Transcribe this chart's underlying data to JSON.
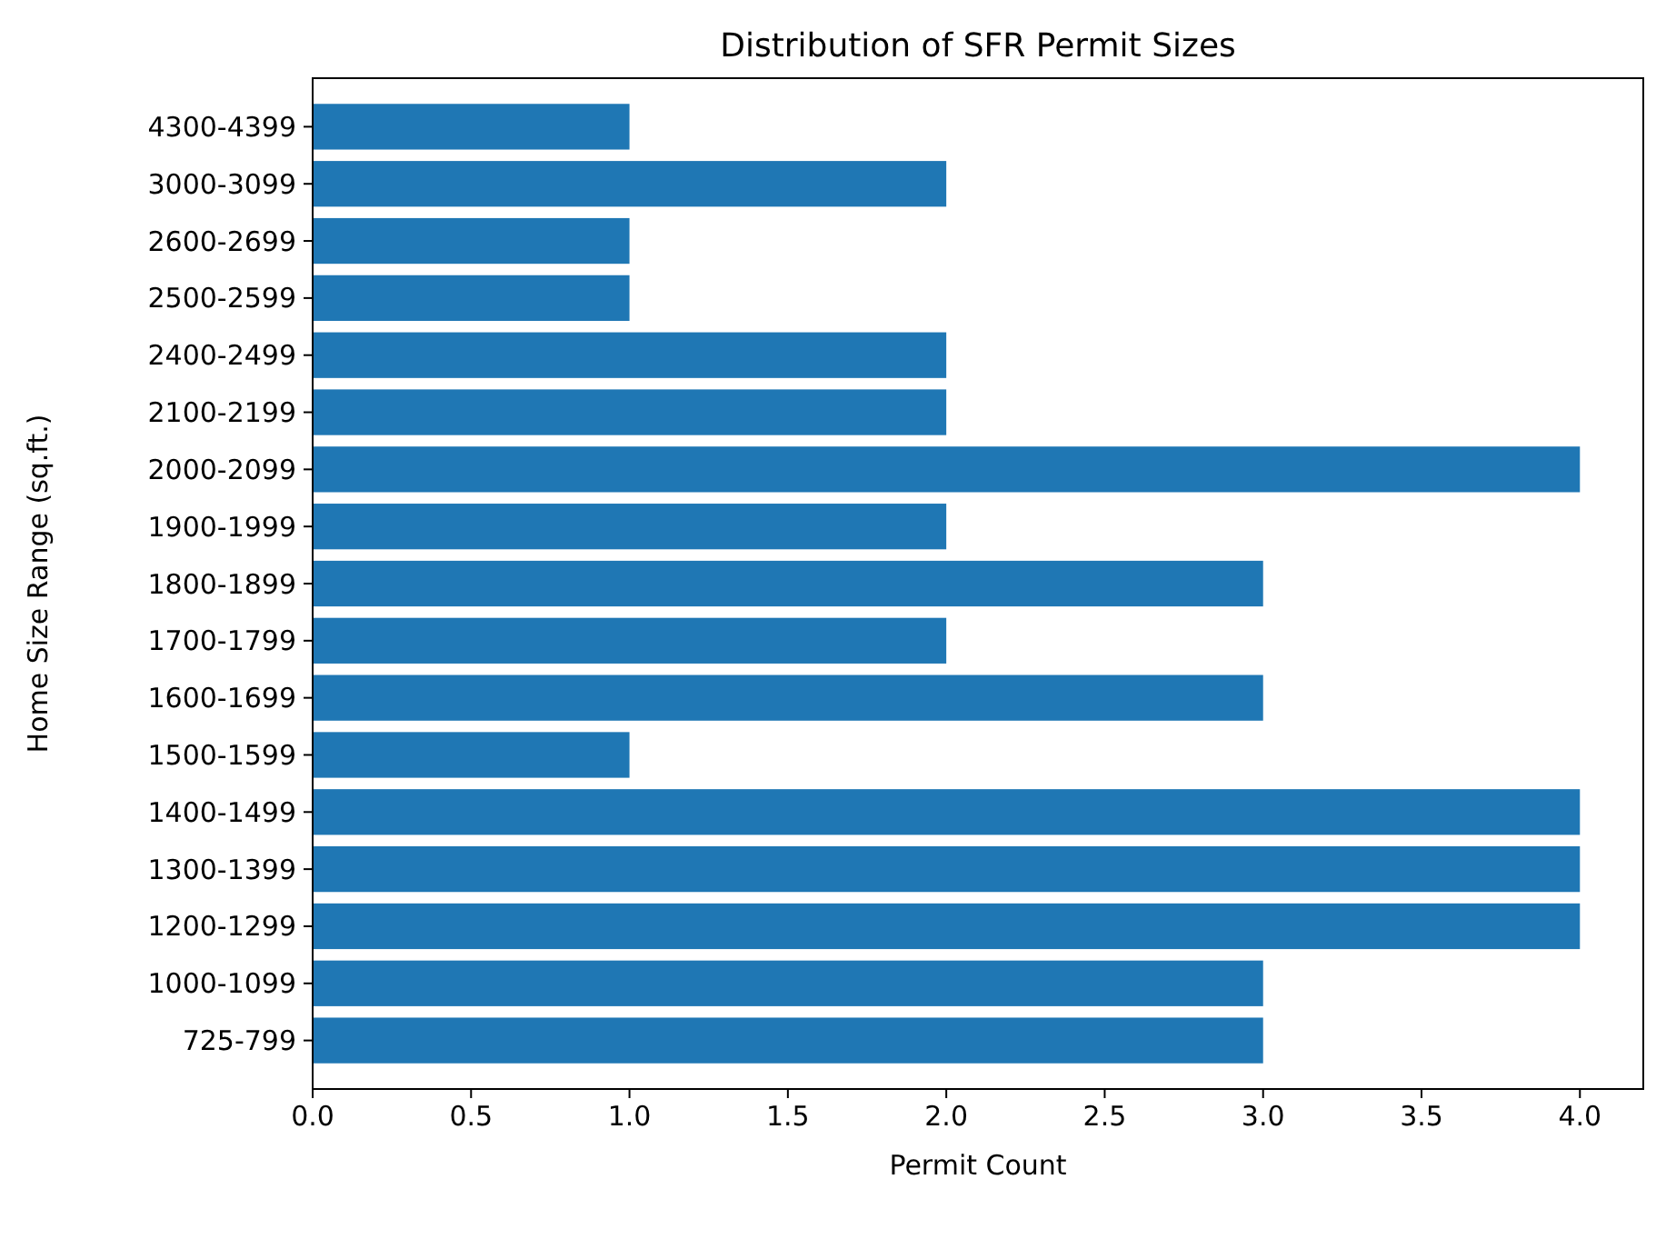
{
  "chart_data": {
    "type": "bar",
    "orientation": "horizontal",
    "title": "Distribution of SFR Permit Sizes",
    "xlabel": "Permit Count",
    "ylabel": "Home Size Range (sq.ft.)",
    "categories": [
      "4300-4399",
      "3000-3099",
      "2600-2699",
      "2500-2599",
      "2400-2499",
      "2100-2199",
      "2000-2099",
      "1900-1999",
      "1800-1899",
      "1700-1799",
      "1600-1699",
      "1500-1599",
      "1400-1499",
      "1300-1399",
      "1200-1299",
      "1000-1099",
      "725-799"
    ],
    "values": [
      1,
      2,
      1,
      1,
      2,
      2,
      4,
      2,
      3,
      2,
      3,
      1,
      4,
      4,
      4,
      3,
      3
    ],
    "color": "#1f77b4",
    "xlim": [
      0,
      4.2
    ],
    "xticks": [
      {
        "value": 0,
        "label": "0.0"
      },
      {
        "value": 0.5,
        "label": "0.5"
      },
      {
        "value": 1,
        "label": "1.0"
      },
      {
        "value": 1.5,
        "label": "1.5"
      },
      {
        "value": 2,
        "label": "2.0"
      },
      {
        "value": 2.5,
        "label": "2.5"
      },
      {
        "value": 3,
        "label": "3.0"
      },
      {
        "value": 3.5,
        "label": "3.5"
      },
      {
        "value": 4,
        "label": "4.0"
      }
    ],
    "grid": false
  }
}
